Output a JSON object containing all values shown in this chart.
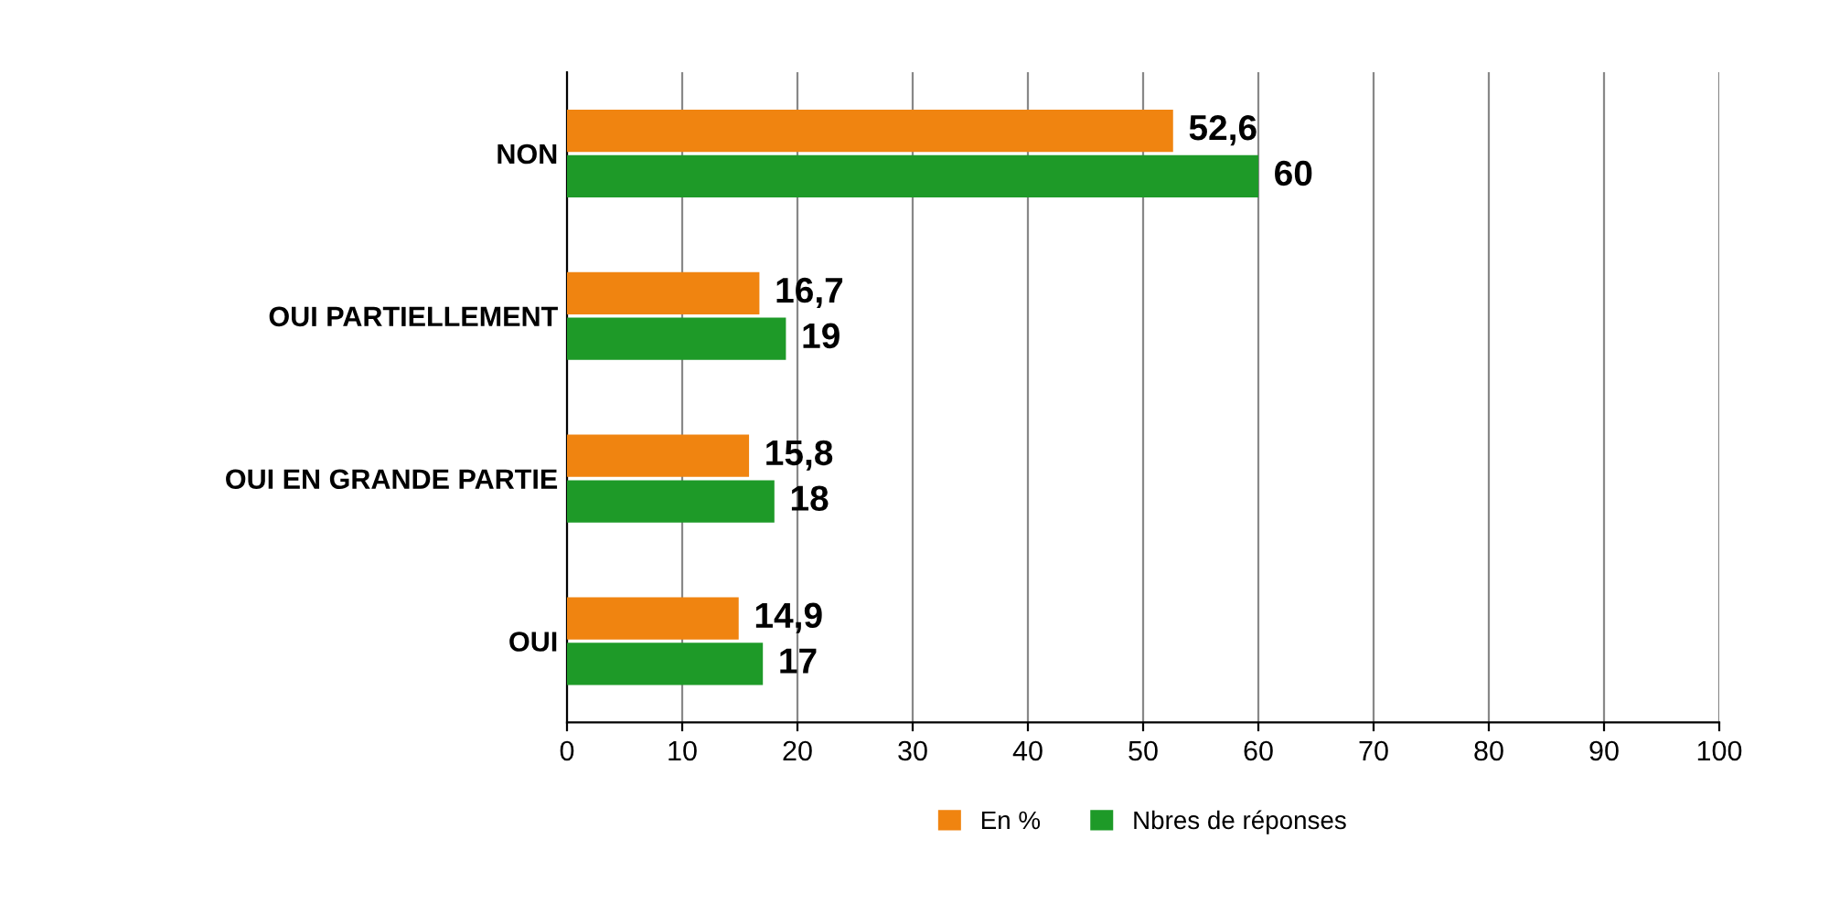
{
  "chart_data": {
    "type": "bar",
    "orientation": "horizontal",
    "categories": [
      "NON",
      "OUI PARTIELLEMENT",
      "OUI EN GRANDE PARTIE",
      "OUI"
    ],
    "series": [
      {
        "name": "En %",
        "color": "#f08410",
        "values": [
          52.6,
          16.7,
          15.8,
          14.9
        ],
        "value_labels": [
          "52,6",
          "16,7",
          "15,8",
          "14,9"
        ]
      },
      {
        "name": "Nbres de réponses",
        "color": "#1e9a28",
        "values": [
          60,
          19,
          18,
          17
        ],
        "value_labels": [
          "60",
          "19",
          "18",
          "17"
        ]
      }
    ],
    "xlim": [
      0,
      100
    ],
    "xticks": [
      0,
      10,
      20,
      30,
      40,
      50,
      60,
      70,
      80,
      90,
      100
    ],
    "grid": "x",
    "legend": "bottom"
  }
}
